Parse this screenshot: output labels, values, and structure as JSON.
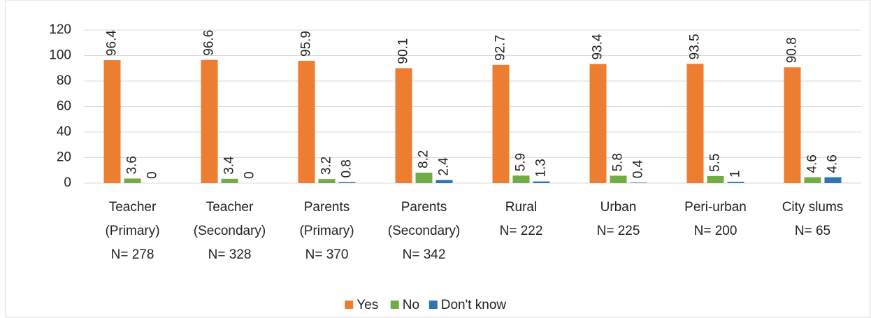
{
  "chart_data": {
    "type": "bar",
    "categories": [
      [
        "Teacher",
        "(Primary)",
        "N= 278"
      ],
      [
        "Teacher",
        "(Secondary)",
        "N=  328"
      ],
      [
        "Parents",
        "(Primary)",
        "N= 370"
      ],
      [
        "Parents",
        "(Secondary)",
        "N= 342"
      ],
      [
        "Rural",
        "N= 222"
      ],
      [
        "Urban",
        "N= 225"
      ],
      [
        "Peri-urban",
        "N= 200"
      ],
      [
        "City slums",
        "N= 65"
      ]
    ],
    "series": [
      {
        "name": "Yes",
        "color": "#ed7d31",
        "values": [
          96.4,
          96.6,
          95.9,
          90.1,
          92.7,
          93.4,
          93.5,
          90.8
        ]
      },
      {
        "name": "No",
        "color": "#70ad47",
        "values": [
          3.6,
          3.4,
          3.2,
          8.2,
          5.9,
          5.8,
          5.5,
          4.6
        ]
      },
      {
        "name": "Don't know",
        "color": "#2e75b6",
        "values": [
          0,
          0,
          0.8,
          2.4,
          1.3,
          0.4,
          1,
          4.6
        ]
      }
    ],
    "ylim": [
      0,
      120
    ],
    "yticks": [
      0,
      20,
      40,
      60,
      80,
      100,
      120
    ],
    "grid": true,
    "legend": "bottom"
  }
}
